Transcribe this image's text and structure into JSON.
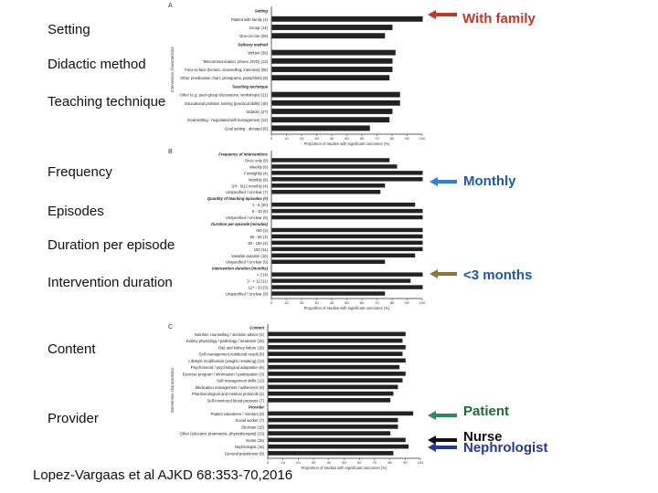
{
  "slide": {
    "left_labels": [
      "Setting",
      "Didactic method",
      "Teaching technique",
      "Frequency",
      "Episodes",
      "Duration per episode",
      "Intervention duration",
      "Content",
      "Provider"
    ],
    "citation": "Lopez-Vargaas et al AJKD 68:353-70,2016"
  },
  "annotations": [
    {
      "text": "With family",
      "color": "#c0392b",
      "arrow_color": "#c0392b"
    },
    {
      "text": "Monthly",
      "color": "#1f5aa6",
      "arrow_color": "#2a7de1"
    },
    {
      "text": "<3 months",
      "color": "#1f5aa6",
      "arrow_color": "#8a7a3a"
    },
    {
      "text": "Patient",
      "color": "#1a6b3a",
      "arrow_color": "#2e8b57"
    },
    {
      "text": "Nurse",
      "color": "#111111",
      "arrow_color": "#111111"
    },
    {
      "text": "Nephrologist",
      "color": "#1f3a93",
      "arrow_color": "#1f3a93"
    }
  ],
  "chart_data": [
    {
      "type": "bar",
      "panel": "A",
      "ylabel": "Intervention characteristics",
      "xlabel": "Proportion of studies with significant outcomes (%)",
      "xlim": [
        0,
        100
      ],
      "categories": [
        "Setting",
        "Patient with family (4)",
        "Group (14)",
        "One-on-one (26)",
        "Delivery method",
        "Written (39)",
        "Telecommunication, phone, DVD) (13)",
        "Face-to-face (lecture, counselling, interview) (56)",
        "Other (medication chart, pictograms, pamphlets) (8)",
        "Teaching technique",
        "Other (e.g. peer-group discussions, workshops) (11)",
        "Educational problem solving (practical skills) (16)",
        "Didactic (27)",
        "Goal-setting - negotiated self-management (12)",
        "Goal setting - dictated (6)"
      ],
      "values": [
        null,
        100,
        80,
        75,
        null,
        82,
        80,
        80,
        78,
        null,
        85,
        85,
        80,
        78,
        65
      ]
    },
    {
      "type": "bar",
      "panel": "B",
      "xlabel": "Proportion of studies with significant outcomes (%)",
      "xlim": [
        0,
        100
      ],
      "categories": [
        "Frequency of interventions",
        "Once only (9)",
        "Weekly (6)",
        "Fortnightly (4)",
        "Monthly (8)",
        "3/4 - 6/12 monthly (4)",
        "Unspecified / Unclear (7)",
        "Quantity of teaching episodes (#)",
        "1 - 5 (30)",
        "6 - 10 (6)",
        "Unspecified / Unclear (9)",
        "Duration per episode (minutes)",
        "<60 (3)",
        "60 - 90 (4)",
        "90 - 150 (4)",
        "150 (11)",
        "Variable duration (10)",
        "Unspecified / Unclear (9)",
        "Intervention duration (months)",
        "< 3 (4)",
        "3 - < 12 (11)",
        "12+ - 23 (3)",
        "Unspecified / Unclear (9)"
      ],
      "values": [
        null,
        78,
        83,
        100,
        100,
        75,
        72,
        null,
        95,
        100,
        100,
        null,
        100,
        100,
        100,
        100,
        95,
        75,
        null,
        100,
        92,
        100,
        75
      ]
    },
    {
      "type": "bar",
      "panel": "C",
      "ylabel": "Intervention characteristics",
      "xlabel": "Proportion of studies with significant outcomes (%)",
      "xlim": [
        0,
        100
      ],
      "categories": [
        "Content",
        "Nutrition counselling / decision advice (4)",
        "Kidney physiology / pathology / treatment (15)",
        "Diet and kidney failure (18)",
        "Self-management nutritional needs (8)",
        "Lifestyle modification (weight / smoking) (13)",
        "Psychosocial / psychological adaptation (6)",
        "Exercise program / information / participation (3)",
        "Self-management skills (12)",
        "Medication management / adherence (8)",
        "Pharmacological and medical protocols (2)",
        "Self-monitored blood pressure (7)",
        "Provider",
        "Patient volunteers / mentors (9)",
        "Social worker (7)",
        "Dietician (15)",
        "Other (educator, pharmacist, physiotherapist) (13)",
        "Nurse (15)",
        "Nephrologist (16)",
        "General practitioner (9)"
      ],
      "values": [
        null,
        90,
        88,
        90,
        88,
        90,
        86,
        90,
        88,
        85,
        82,
        80,
        null,
        95,
        85,
        85,
        80,
        90,
        92,
        82
      ]
    }
  ]
}
